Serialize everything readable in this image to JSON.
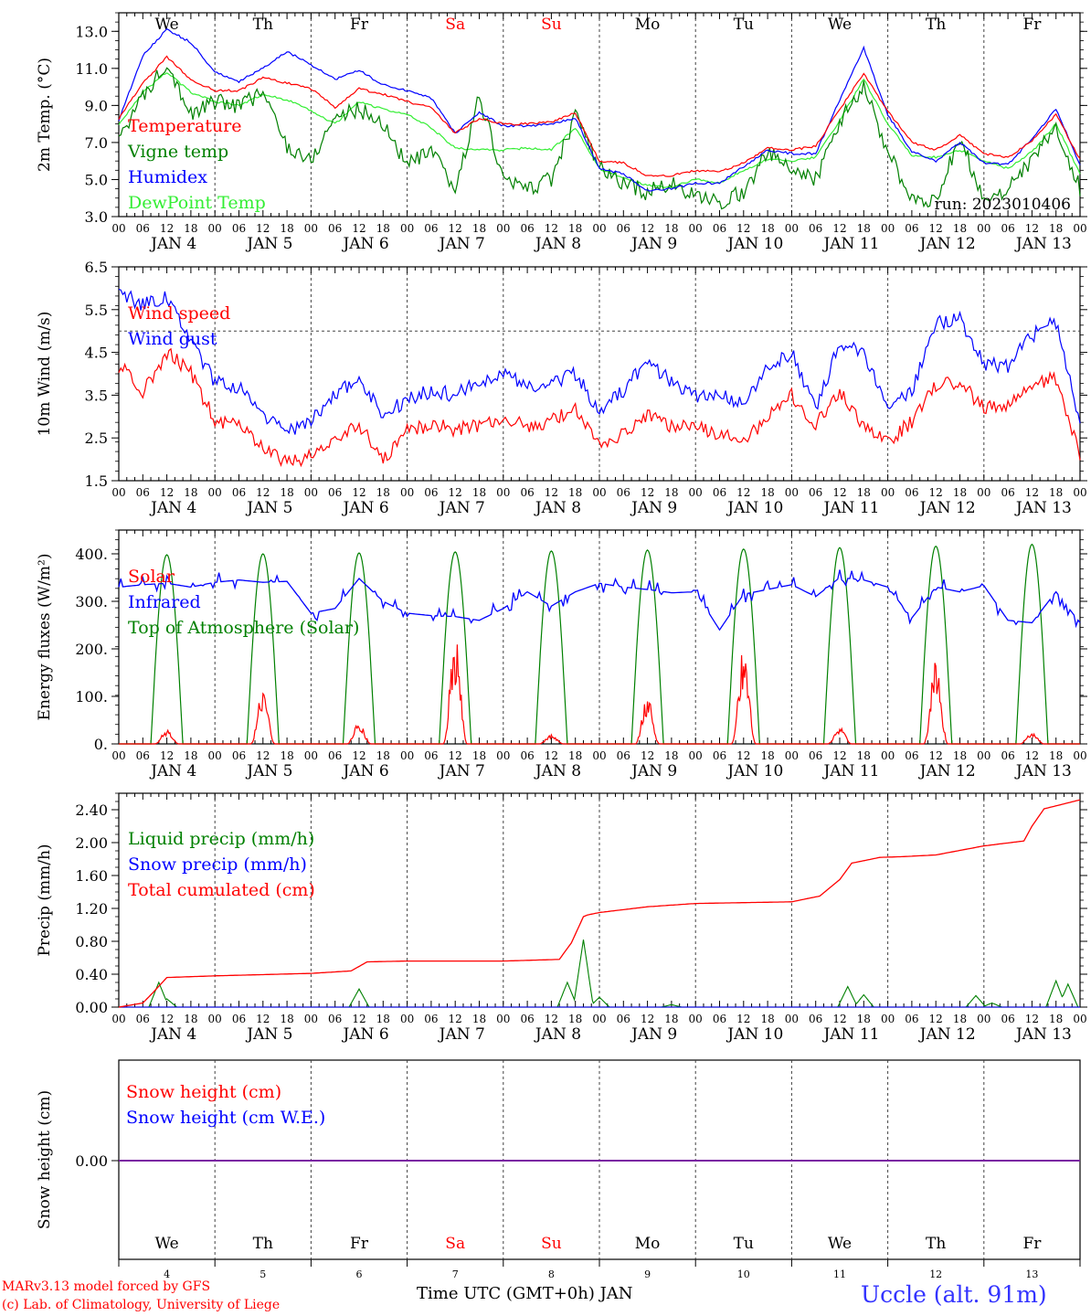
{
  "days": [
    "We",
    "Th",
    "Fr",
    "Sa",
    "Su",
    "Mo",
    "Tu",
    "We",
    "Th",
    "Fr"
  ],
  "weekend_days": [
    3,
    4
  ],
  "dates": [
    "JAN  4",
    "JAN  5",
    "JAN  6",
    "JAN  7",
    "JAN  8",
    "JAN  9",
    "JAN 10",
    "JAN 11",
    "JAN 12",
    "JAN 13"
  ],
  "day_numbers": [
    "4",
    "5",
    "6",
    "7",
    "8",
    "9",
    "10",
    "11",
    "12",
    "13"
  ],
  "hour_ticks": [
    "00",
    "06",
    "12",
    "18"
  ],
  "footer": {
    "model": "MARv3.13 model forced by GFS",
    "copyright": "(c) Lab. of Climatology, University of Liege",
    "time_label": "Time UTC (GMT+0h) JAN",
    "station": "Uccle (alt. 91m)"
  },
  "colors": {
    "red": "#ff0000",
    "green": "#008000",
    "blue": "#0000ff",
    "lightgreen": "#33ee33",
    "purple": "#7a1fa2"
  },
  "chart_data": [
    {
      "type": "line",
      "ylabel": "2m Temp. (°C)",
      "ylim": [
        3,
        14
      ],
      "yticks": [
        "3.0",
        "5.0",
        "7.0",
        "9.0",
        "11.0",
        "13.0"
      ],
      "x_unit": "hours since JAN 4 00 UTC",
      "annotation": "run: 2023010406",
      "series": [
        {
          "name": "Temperature",
          "color": "red",
          "x": [
            0,
            6,
            12,
            18,
            24,
            30,
            36,
            42,
            48,
            54,
            60,
            66,
            72,
            78,
            84,
            90,
            96,
            102,
            108,
            114,
            120,
            126,
            132,
            138,
            144,
            150,
            156,
            162,
            168,
            174,
            180,
            186,
            192,
            198,
            204,
            210,
            216,
            222,
            228,
            234,
            240
          ],
          "y": [
            8.3,
            10.2,
            11.6,
            10.4,
            9.8,
            9.8,
            10.5,
            10.2,
            9.9,
            8.9,
            9.9,
            9.6,
            9.2,
            8.9,
            7.5,
            8.3,
            8.0,
            8.0,
            8.1,
            8.6,
            6.0,
            5.9,
            5.2,
            5.2,
            5.5,
            5.4,
            5.9,
            6.7,
            6.6,
            6.8,
            8.8,
            10.7,
            8.7,
            7.0,
            6.6,
            7.4,
            6.4,
            6.2,
            7.1,
            8.5,
            6.1
          ]
        },
        {
          "name": "Vigne temp",
          "color": "green",
          "x": [
            0,
            6,
            12,
            18,
            24,
            30,
            36,
            42,
            48,
            54,
            60,
            66,
            72,
            78,
            84,
            90,
            96,
            102,
            108,
            114,
            120,
            126,
            132,
            138,
            144,
            150,
            156,
            162,
            168,
            174,
            180,
            186,
            192,
            198,
            204,
            210,
            216,
            222,
            228,
            234,
            240
          ],
          "y": [
            7.4,
            9.4,
            11.4,
            8.5,
            9.2,
            9.0,
            9.7,
            6.8,
            6.0,
            8.4,
            8.8,
            8.0,
            5.8,
            6.5,
            4.4,
            9.5,
            5.0,
            4.5,
            5.0,
            8.5,
            5.6,
            4.8,
            4.3,
            4.8,
            4.0,
            3.8,
            4.3,
            6.5,
            5.5,
            5.0,
            8.2,
            10.0,
            6.5,
            3.8,
            4.0,
            7.2,
            4.0,
            4.5,
            6.0,
            7.8,
            4.5
          ]
        },
        {
          "name": "Humidex",
          "color": "blue",
          "x": [
            0,
            6,
            12,
            18,
            24,
            30,
            36,
            42,
            48,
            54,
            60,
            66,
            72,
            78,
            84,
            90,
            96,
            102,
            108,
            114,
            120,
            126,
            132,
            138,
            144,
            150,
            156,
            162,
            168,
            174,
            180,
            186,
            192,
            198,
            204,
            210,
            216,
            222,
            228,
            234,
            240
          ],
          "y": [
            8.2,
            11.7,
            13.1,
            12.4,
            10.8,
            10.3,
            11.0,
            11.9,
            11.2,
            10.4,
            10.9,
            10.1,
            9.8,
            9.4,
            7.5,
            8.6,
            7.9,
            7.9,
            8.0,
            8.3,
            5.6,
            5.3,
            4.4,
            4.5,
            4.8,
            4.8,
            5.7,
            6.6,
            6.4,
            6.4,
            9.3,
            12.1,
            8.5,
            6.5,
            6.0,
            7.0,
            5.9,
            5.8,
            7.2,
            8.8,
            5.8
          ]
        },
        {
          "name": "DewPoint Temp",
          "color": "lightgreen",
          "x": [
            0,
            6,
            12,
            18,
            24,
            30,
            36,
            42,
            48,
            54,
            60,
            66,
            72,
            78,
            84,
            90,
            96,
            102,
            108,
            114,
            120,
            126,
            132,
            138,
            144,
            150,
            156,
            162,
            168,
            174,
            180,
            186,
            192,
            198,
            204,
            210,
            216,
            222,
            228,
            234,
            240
          ],
          "y": [
            8.0,
            9.7,
            10.8,
            9.7,
            9.2,
            9.0,
            9.6,
            9.3,
            8.7,
            8.0,
            9.2,
            8.8,
            8.5,
            7.8,
            6.7,
            6.6,
            6.6,
            6.7,
            6.6,
            7.8,
            5.6,
            5.1,
            4.7,
            4.6,
            5.0,
            4.8,
            5.5,
            6.1,
            6.0,
            6.2,
            8.2,
            10.4,
            8.0,
            6.3,
            6.2,
            6.6,
            6.0,
            5.6,
            6.5,
            8.0,
            5.3
          ]
        }
      ]
    },
    {
      "type": "line",
      "ylabel": "10m Wind (m/s)",
      "ylim": [
        1.5,
        6.5
      ],
      "yticks": [
        "1.5",
        "2.5",
        "3.5",
        "4.5",
        "5.5",
        "6.5"
      ],
      "x_unit": "hours since JAN 4 00 UTC",
      "reference_line": 5.0,
      "series": [
        {
          "name": "Wind speed",
          "color": "red",
          "x": [
            0,
            6,
            12,
            18,
            24,
            30,
            36,
            42,
            48,
            54,
            60,
            66,
            72,
            78,
            84,
            90,
            96,
            102,
            108,
            114,
            120,
            126,
            132,
            138,
            144,
            150,
            156,
            162,
            168,
            174,
            180,
            186,
            192,
            198,
            204,
            210,
            216,
            222,
            228,
            234,
            240
          ],
          "y": [
            4.2,
            3.6,
            4.5,
            4.0,
            2.9,
            2.8,
            2.3,
            1.9,
            2.1,
            2.5,
            2.8,
            2.0,
            2.7,
            2.8,
            2.7,
            2.8,
            3.0,
            2.8,
            2.9,
            3.2,
            2.3,
            2.6,
            3.0,
            2.8,
            2.8,
            2.6,
            2.4,
            3.0,
            3.5,
            2.8,
            3.6,
            2.7,
            2.4,
            2.9,
            3.7,
            3.8,
            3.2,
            3.2,
            3.7,
            3.9,
            2.1
          ]
        },
        {
          "name": "Wind gust",
          "color": "blue",
          "x": [
            0,
            6,
            12,
            18,
            24,
            30,
            36,
            42,
            48,
            54,
            60,
            66,
            72,
            78,
            84,
            90,
            96,
            102,
            108,
            114,
            120,
            126,
            132,
            138,
            144,
            150,
            156,
            162,
            168,
            174,
            180,
            186,
            192,
            198,
            204,
            210,
            216,
            222,
            228,
            234,
            240
          ],
          "y": [
            5.9,
            5.6,
            5.8,
            4.8,
            3.8,
            3.7,
            3.0,
            2.6,
            2.9,
            3.5,
            3.9,
            3.0,
            3.4,
            3.6,
            3.5,
            3.8,
            4.0,
            3.7,
            3.8,
            4.0,
            3.1,
            3.6,
            4.3,
            3.8,
            3.5,
            3.5,
            3.3,
            4.2,
            4.5,
            3.2,
            4.7,
            4.5,
            3.1,
            3.6,
            5.2,
            5.3,
            4.2,
            4.2,
            4.9,
            5.2,
            2.8
          ]
        }
      ]
    },
    {
      "type": "line",
      "ylabel": "Energy fluxes (W/m²)",
      "ylim": [
        0,
        450
      ],
      "yticks": [
        "0.",
        "100.",
        "200.",
        "300.",
        "400."
      ],
      "x_unit": "hours since JAN 4 00 UTC",
      "series": [
        {
          "name": "Solar",
          "color": "red",
          "day_peaks": [
            30,
            115,
            45,
            225,
            20,
            100,
            205,
            35,
            175,
            25
          ]
        },
        {
          "name": "Infrared",
          "color": "blue",
          "x": [
            0,
            6,
            12,
            18,
            24,
            30,
            36,
            42,
            48,
            54,
            60,
            66,
            72,
            78,
            84,
            90,
            96,
            102,
            108,
            114,
            120,
            126,
            132,
            138,
            144,
            150,
            156,
            162,
            168,
            174,
            180,
            186,
            192,
            198,
            204,
            210,
            216,
            222,
            228,
            234,
            240
          ],
          "y": [
            330,
            335,
            338,
            330,
            340,
            345,
            340,
            342,
            275,
            285,
            348,
            300,
            275,
            270,
            268,
            260,
            285,
            320,
            290,
            320,
            338,
            330,
            325,
            318,
            320,
            240,
            315,
            325,
            335,
            310,
            350,
            345,
            330,
            265,
            330,
            320,
            333,
            260,
            255,
            320,
            255
          ]
        },
        {
          "name": "Top of Atmosphere (Solar)",
          "color": "green",
          "day_peaks": [
            398,
            400,
            402,
            404,
            406,
            408,
            410,
            413,
            416,
            420
          ]
        }
      ]
    },
    {
      "type": "line",
      "ylabel": "Precip (mm/h)",
      "ylim": [
        0,
        2.6
      ],
      "yticks": [
        "0.00",
        "0.40",
        "0.80",
        "1.20",
        "1.60",
        "2.00",
        "2.40"
      ],
      "x_unit": "hours since JAN 4 00 UTC",
      "series": [
        {
          "name": "Liquid precip (mm/h)",
          "color": "green",
          "events": [
            [
              10,
              0.3
            ],
            [
              12,
              0.1
            ],
            [
              60,
              0.22
            ],
            [
              112,
              0.3
            ],
            [
              116,
              0.82
            ],
            [
              120,
              0.12
            ],
            [
              138,
              0.03
            ],
            [
              182,
              0.25
            ],
            [
              186,
              0.15
            ],
            [
              214,
              0.14
            ],
            [
              218,
              0.05
            ],
            [
              234,
              0.32
            ],
            [
              237,
              0.28
            ]
          ]
        },
        {
          "name": "Snow precip (mm/h)",
          "color": "blue",
          "x": [
            0,
            240
          ],
          "y": [
            0,
            0
          ]
        },
        {
          "name": "Total cumulated (cm)",
          "color": "red",
          "x": [
            0,
            6,
            9,
            12,
            24,
            48,
            58,
            62,
            72,
            96,
            110,
            113,
            116,
            117,
            120,
            132,
            144,
            168,
            175,
            180,
            183,
            190,
            196,
            200,
            204,
            216,
            226,
            228,
            231,
            240
          ],
          "y": [
            0,
            0.05,
            0.2,
            0.36,
            0.38,
            0.41,
            0.44,
            0.55,
            0.56,
            0.56,
            0.58,
            0.78,
            1.1,
            1.12,
            1.15,
            1.22,
            1.26,
            1.28,
            1.35,
            1.55,
            1.75,
            1.82,
            1.83,
            1.84,
            1.85,
            1.96,
            2.02,
            2.2,
            2.41,
            2.52
          ]
        }
      ]
    },
    {
      "type": "line",
      "ylabel": "Snow height (cm)",
      "ytick": "0.00",
      "x_unit": "hours since JAN 4 00 UTC",
      "series": [
        {
          "name": "Snow height (cm)",
          "color": "red",
          "x": [
            0,
            240
          ],
          "y": [
            0,
            0
          ]
        },
        {
          "name": "Snow height (cm W.E.)",
          "color": "blue",
          "x": [
            0,
            240
          ],
          "y": [
            0,
            0
          ]
        }
      ]
    }
  ]
}
